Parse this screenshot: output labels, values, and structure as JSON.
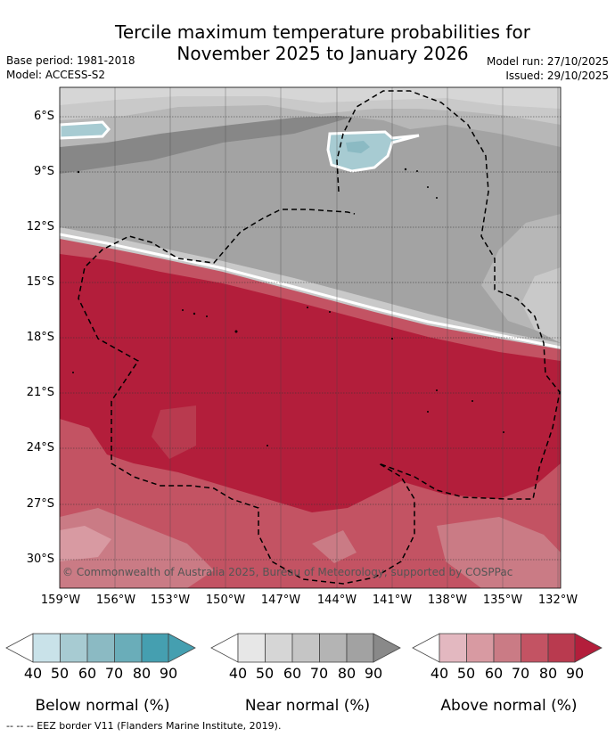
{
  "title_line1": "Tercile maximum temperature probabilities for",
  "title_line2": "November 2025 to January 2026",
  "meta_left": [
    "Base period: 1981-2018",
    "Model: ACCESS-S2"
  ],
  "meta_right": [
    "Model run: 27/10/2025",
    "Issued: 29/10/2025"
  ],
  "copyright": "© Commonwealth of Australia 2025, Bureau of Meteorology, supported by COSPPac",
  "lat_labels": [
    "6°S",
    "9°S",
    "12°S",
    "15°S",
    "18°S",
    "21°S",
    "24°S",
    "27°S",
    "30°S"
  ],
  "lon_labels": [
    "159°W",
    "156°W",
    "153°W",
    "150°W",
    "147°W",
    "144°W",
    "141°W",
    "138°W",
    "135°W",
    "132°W"
  ],
  "legend": {
    "ticks": [
      "40",
      "50",
      "60",
      "70",
      "80",
      "90"
    ],
    "below": {
      "caption": "Below normal (%)",
      "colors": [
        "#ffffff",
        "#c9e2e9",
        "#a7cbd2",
        "#8bbac3",
        "#6aadb9",
        "#459fb0"
      ]
    },
    "near": {
      "caption": "Near normal (%)",
      "colors": [
        "#ffffff",
        "#e7e7e7",
        "#d6d6d6",
        "#c5c5c5",
        "#b4b4b4",
        "#a2a2a2",
        "#898989"
      ]
    },
    "above": {
      "caption": "Above normal (%)",
      "colors": [
        "#ffffff",
        "#e3b8c0",
        "#d89aa2",
        "#ca7b85",
        "#c35363",
        "#b93a4f",
        "#b31e3b"
      ]
    }
  },
  "footer": "-- -- -- EEZ border V11 (Flanders Marine Institute, 2019).",
  "map_colors": {
    "near90": "#878787",
    "near80": "#a3a3a3",
    "near70": "#b7b7b7",
    "near60": "#c9c9c9",
    "near50": "#d6d6d6",
    "below60": "#a7cbd2",
    "below70": "#8bbac3",
    "above50": "#e3b8c0",
    "above60": "#ca7b85",
    "above70": "#c35363",
    "above80": "#b93a4f",
    "above90": "#b31e3b"
  }
}
